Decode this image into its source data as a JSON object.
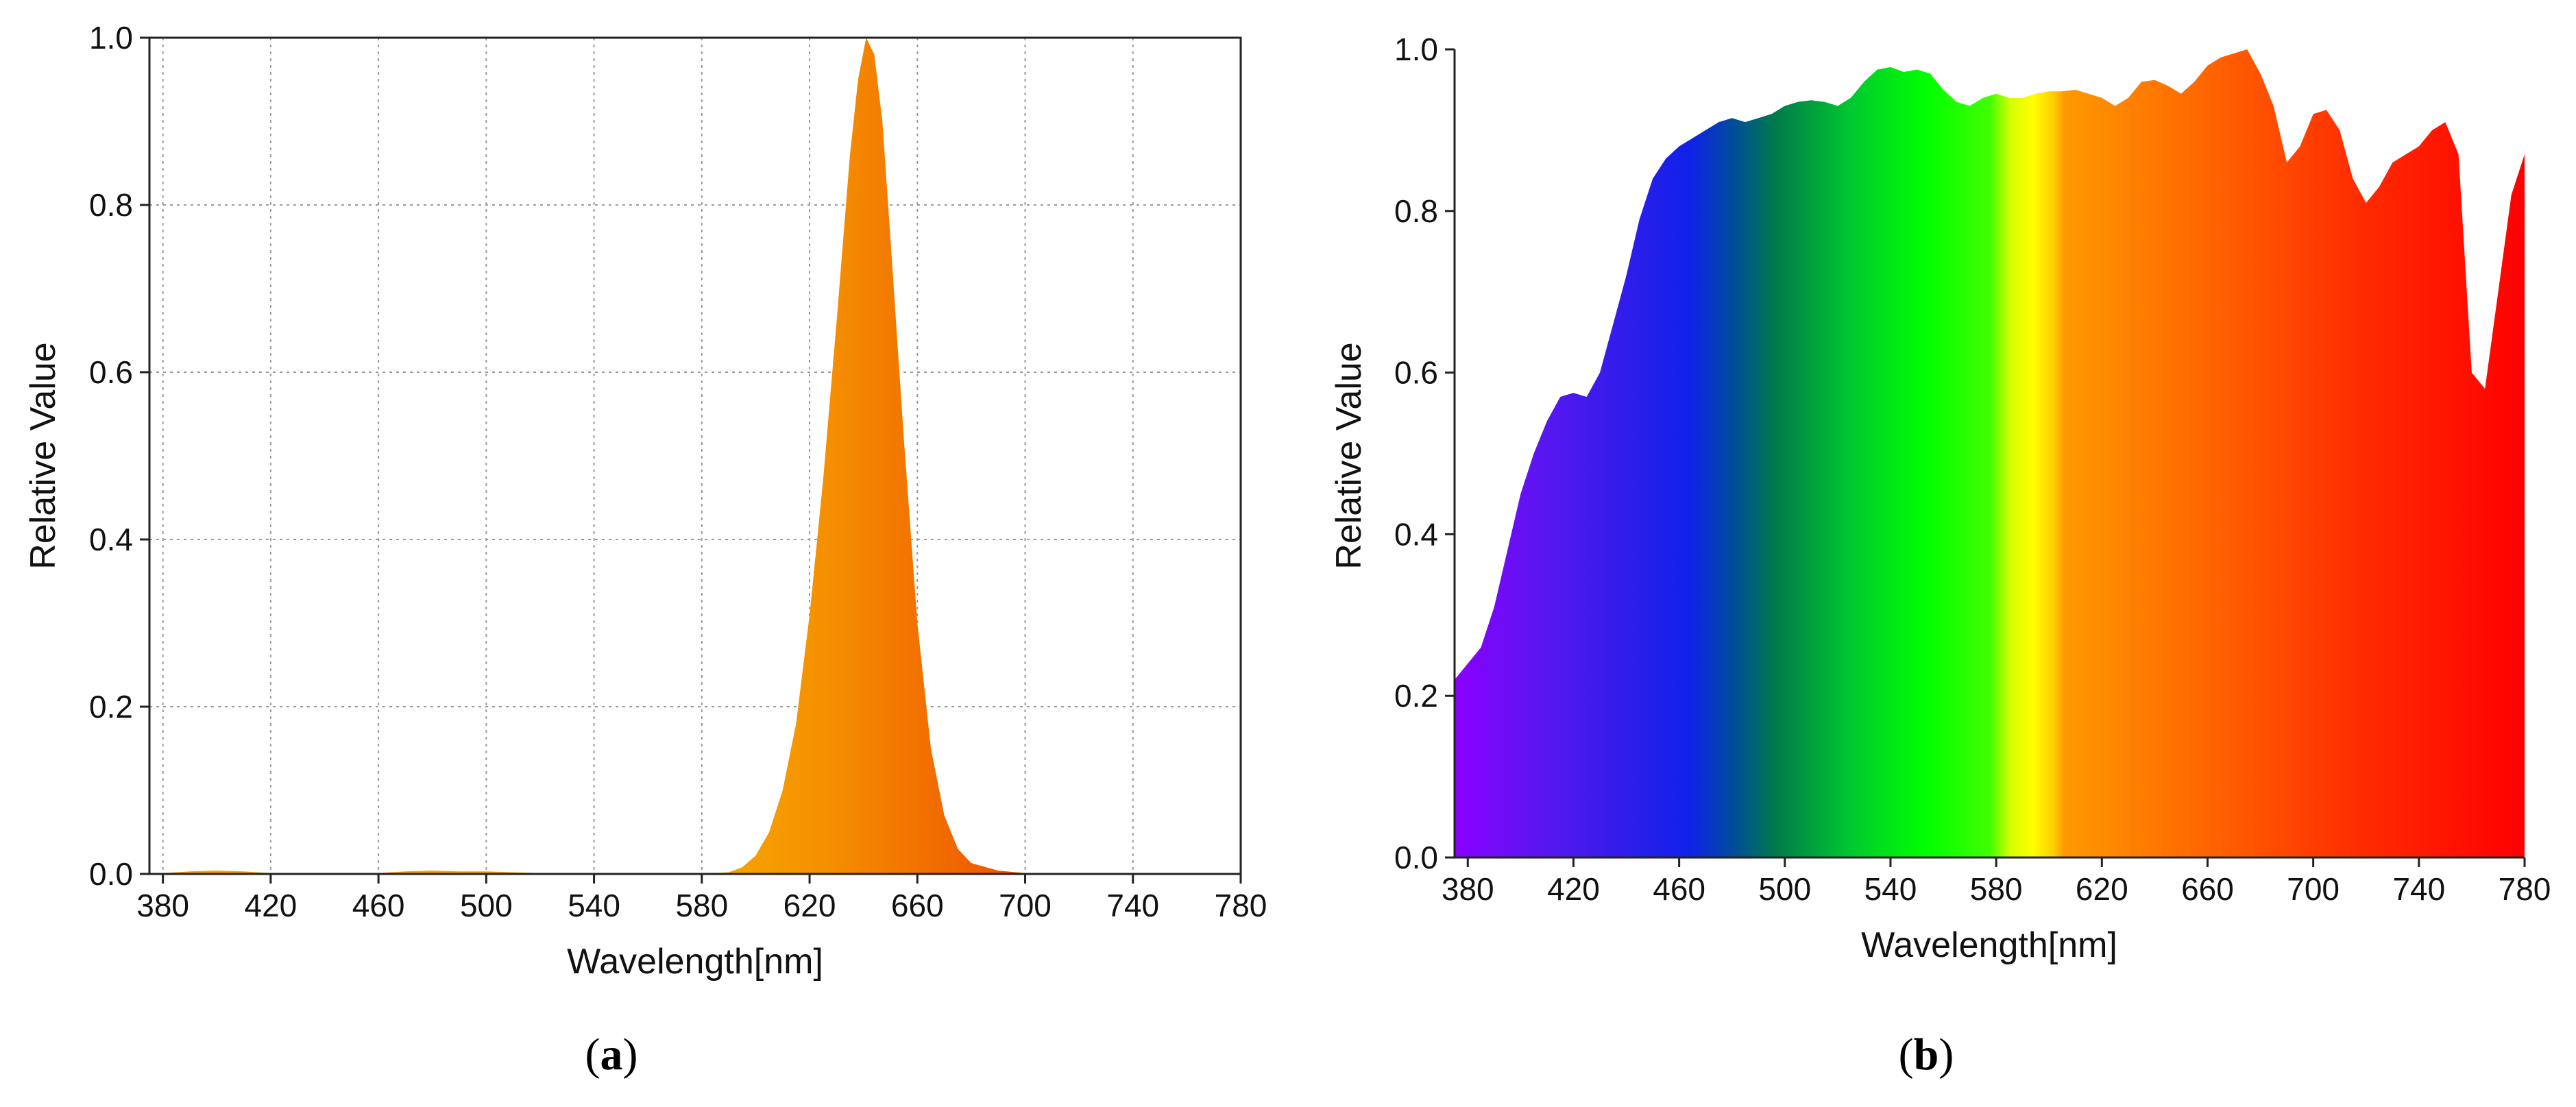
{
  "chart_data": [
    {
      "type": "area",
      "panel": "a",
      "title": "",
      "xlabel": "Wavelength[nm]",
      "ylabel": "Relative Value",
      "xlim": [
        375,
        780
      ],
      "ylim": [
        0,
        1.0
      ],
      "xticks": [
        380,
        420,
        460,
        500,
        540,
        580,
        620,
        660,
        700,
        740,
        780
      ],
      "yticks": [
        0.0,
        0.2,
        0.4,
        0.6,
        0.8,
        1.0
      ],
      "ytick_labels": [
        "0.0",
        "0.2",
        "0.4",
        "0.6",
        "0.8",
        "1.0"
      ],
      "grid": true,
      "x": [
        375,
        380,
        390,
        400,
        410,
        420,
        430,
        440,
        450,
        460,
        470,
        480,
        490,
        500,
        510,
        520,
        540,
        560,
        580,
        590,
        595,
        600,
        605,
        610,
        615,
        620,
        625,
        630,
        635,
        638,
        641,
        644,
        647,
        650,
        655,
        660,
        665,
        670,
        675,
        680,
        690,
        700,
        710,
        720,
        740,
        760,
        780
      ],
      "values": [
        0.0,
        0.001,
        0.003,
        0.004,
        0.003,
        0.001,
        0.0,
        0.001,
        0.0,
        0.001,
        0.003,
        0.004,
        0.003,
        0.003,
        0.002,
        0.001,
        0.0,
        0.0,
        0.0,
        0.002,
        0.008,
        0.022,
        0.05,
        0.1,
        0.18,
        0.31,
        0.47,
        0.66,
        0.86,
        0.95,
        1.0,
        0.98,
        0.9,
        0.76,
        0.52,
        0.3,
        0.15,
        0.07,
        0.03,
        0.013,
        0.004,
        0.001,
        0.0,
        0.0,
        0.0,
        0.0,
        0.0
      ]
    },
    {
      "type": "area",
      "panel": "b",
      "title": "",
      "xlabel": "Wavelength[nm]",
      "ylabel": "Relative Value",
      "xlim": [
        375,
        780
      ],
      "ylim": [
        0,
        1.0
      ],
      "xticks": [
        380,
        420,
        460,
        500,
        540,
        580,
        620,
        660,
        700,
        740,
        780
      ],
      "yticks": [
        0.0,
        0.2,
        0.4,
        0.6,
        0.8,
        1.0
      ],
      "ytick_labels": [
        "0.0",
        "0.2",
        "0.4",
        "0.6",
        "0.8",
        "1.0"
      ],
      "grid": false,
      "x": [
        375,
        380,
        385,
        390,
        395,
        400,
        405,
        410,
        415,
        420,
        425,
        430,
        435,
        440,
        445,
        450,
        455,
        460,
        465,
        470,
        475,
        480,
        485,
        490,
        495,
        500,
        505,
        510,
        515,
        520,
        525,
        530,
        535,
        540,
        545,
        550,
        555,
        560,
        565,
        570,
        575,
        580,
        585,
        590,
        595,
        600,
        605,
        610,
        615,
        620,
        625,
        630,
        635,
        640,
        645,
        650,
        655,
        660,
        665,
        670,
        675,
        680,
        685,
        690,
        695,
        700,
        705,
        710,
        715,
        720,
        725,
        730,
        735,
        740,
        745,
        750,
        755,
        760,
        765,
        770,
        775,
        780
      ],
      "values": [
        0.22,
        0.24,
        0.26,
        0.31,
        0.38,
        0.45,
        0.5,
        0.54,
        0.57,
        0.575,
        0.57,
        0.6,
        0.66,
        0.72,
        0.79,
        0.84,
        0.865,
        0.88,
        0.89,
        0.9,
        0.91,
        0.915,
        0.91,
        0.915,
        0.92,
        0.93,
        0.935,
        0.937,
        0.935,
        0.93,
        0.94,
        0.96,
        0.975,
        0.978,
        0.972,
        0.975,
        0.97,
        0.95,
        0.935,
        0.93,
        0.94,
        0.945,
        0.94,
        0.94,
        0.945,
        0.948,
        0.948,
        0.95,
        0.945,
        0.94,
        0.93,
        0.94,
        0.96,
        0.962,
        0.955,
        0.945,
        0.96,
        0.98,
        0.99,
        0.995,
        1.0,
        0.97,
        0.93,
        0.86,
        0.88,
        0.92,
        0.925,
        0.9,
        0.84,
        0.81,
        0.83,
        0.86,
        0.87,
        0.88,
        0.9,
        0.91,
        0.87,
        0.6,
        0.58,
        0.7,
        0.82,
        0.87
      ]
    }
  ],
  "panel_labels": {
    "a": {
      "open": "(",
      "letter": "a",
      "close": ")"
    },
    "b": {
      "open": "(",
      "letter": "b",
      "close": ")"
    }
  }
}
